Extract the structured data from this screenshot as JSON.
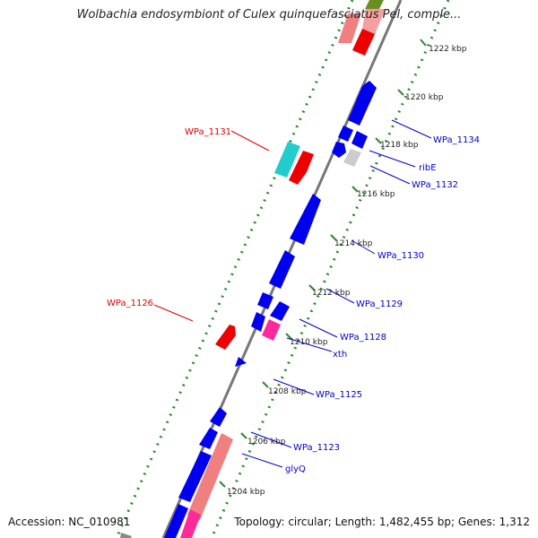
{
  "title": "Wolbachia endosymbiont of Culex quinquefasciatus Pel, comple...",
  "footer": {
    "accession": "Accession: NC_010981",
    "topology": "Topology: circular",
    "length": "Length: 1,482,455 bp",
    "genes": "Genes: 1,312"
  },
  "colors": {
    "forward_gene": "#0000ee",
    "reverse_gene": "#ee0000",
    "rna_pink": "#ff2a9a",
    "rna_salmon": "#f08080",
    "cyan_gene": "#22cccc",
    "gray_gene": "#cccccc",
    "backbone": "#777777",
    "dotted_track": "#2a8a2a",
    "label_blue": "#0000cc",
    "label_red": "#dd0000"
  },
  "kbp_labels": [
    "1222 kbp",
    "1220 kbp",
    "1218 kbp",
    "1216 kbp",
    "1214 kbp",
    "1212 kbp",
    "1210 kbp",
    "1208 kbp",
    "1206 kbp",
    "1204 kbp"
  ],
  "gene_labels": {
    "WPa_1131": "WPa_1131",
    "WPa_1126": "WPa_1126",
    "WPa_1134": "WPa_1134",
    "ribE": "ribE",
    "WPa_1132": "WPa_1132",
    "WPa_1130": "WPa_1130",
    "WPa_1129": "WPa_1129",
    "WPa_1128": "WPa_1128",
    "xth": "xth",
    "WPa_1125": "WPa_1125",
    "WPa_1123": "WPa_1123",
    "glyQ": "glyQ"
  }
}
